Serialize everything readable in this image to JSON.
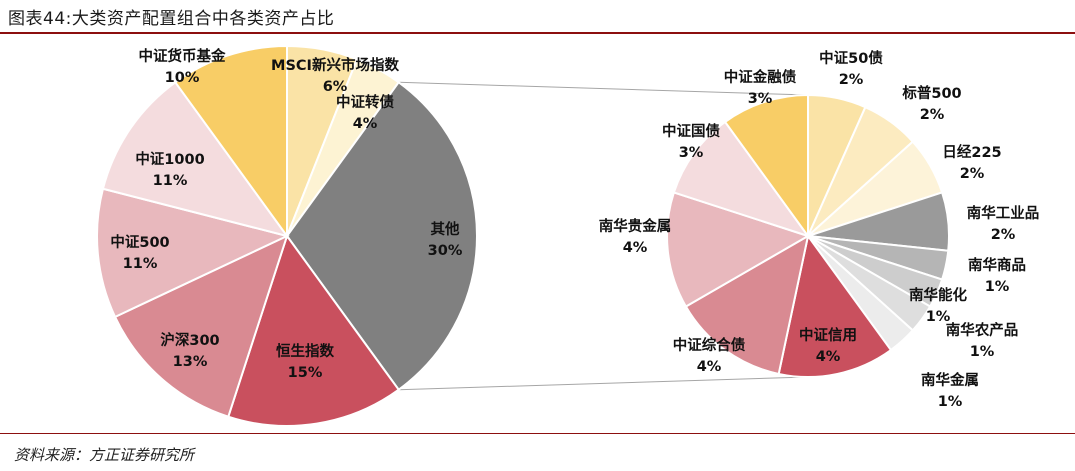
{
  "title": "图表44:大类资产配置组合中各类资产占比",
  "source": "资料来源：方正证券研究所",
  "chart_data": {
    "type": "pie",
    "variant": "pie-of-pie",
    "main_pie": [
      {
        "name": "MSCI新兴市场指数",
        "value": 6,
        "label": "6%",
        "color": "#fae3a6"
      },
      {
        "name": "中证转债",
        "value": 4,
        "label": "4%",
        "color": "#fdf3d3"
      },
      {
        "name": "其他",
        "value": 30,
        "label": "30%",
        "color": "#808080"
      },
      {
        "name": "恒生指数",
        "value": 15,
        "label": "15%",
        "color": "#c9505e"
      },
      {
        "name": "沪深300",
        "value": 13,
        "label": "13%",
        "color": "#d98a92"
      },
      {
        "name": "中证500",
        "value": 11,
        "label": "11%",
        "color": "#e8b8bd"
      },
      {
        "name": "中证1000",
        "value": 11,
        "label": "11%",
        "color": "#f4dcde"
      },
      {
        "name": "中证货币基金",
        "value": 10,
        "label": "10%",
        "color": "#f8cd66"
      }
    ],
    "detail_pie": [
      {
        "name": "中证50债",
        "value": 2,
        "label": "2%",
        "color": "#fae3a6"
      },
      {
        "name": "标普500",
        "value": 2,
        "label": "2%",
        "color": "#fcebc0"
      },
      {
        "name": "日经225",
        "value": 2,
        "label": "2%",
        "color": "#fdf3d9"
      },
      {
        "name": "南华工业品",
        "value": 2,
        "label": "2%",
        "color": "#9a9a9a"
      },
      {
        "name": "南华商品",
        "value": 1,
        "label": "1%",
        "color": "#b5b5b5"
      },
      {
        "name": "南华能化",
        "value": 1,
        "label": "1%",
        "color": "#cdcdcd"
      },
      {
        "name": "南华农产品",
        "value": 1,
        "label": "1%",
        "color": "#dedede"
      },
      {
        "name": "南华金属",
        "value": 1,
        "label": "1%",
        "color": "#ececec"
      },
      {
        "name": "中证信用",
        "value": 4,
        "label": "4%",
        "color": "#c9505e"
      },
      {
        "name": "中证综合债",
        "value": 4,
        "label": "4%",
        "color": "#d98a92"
      },
      {
        "name": "南华贵金属",
        "value": 4,
        "label": "4%",
        "color": "#e8b8bd"
      },
      {
        "name": "中证国债",
        "value": 3,
        "label": "3%",
        "color": "#f4dcde"
      },
      {
        "name": "中证金融债",
        "value": 3,
        "label": "3%",
        "color": "#f8cd66"
      }
    ],
    "expanded_slice": "其他",
    "legend": "none"
  }
}
